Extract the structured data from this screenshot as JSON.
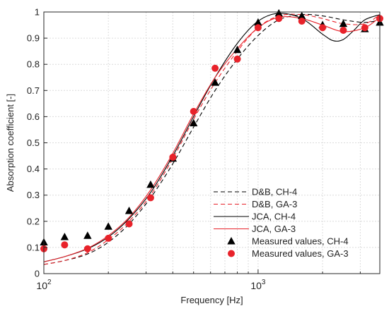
{
  "chart_data": {
    "type": "line",
    "xlabel": "Frequency [Hz]",
    "ylabel": "Absorption coefficient [-]",
    "xscale": "log",
    "xlim": [
      100,
      3700
    ],
    "ylim": [
      0,
      1
    ],
    "grid": true,
    "legend_position": "bottom-right",
    "y_ticks": [
      "0",
      "0.1",
      "0.2",
      "0.3",
      "0.4",
      "0.5",
      "0.6",
      "0.7",
      "0.8",
      "0.9",
      "1"
    ],
    "x_ticks": [
      {
        "base": "10",
        "exp": "2",
        "value": 100
      },
      {
        "base": "10",
        "exp": "3",
        "value": 1000
      }
    ],
    "series": [
      {
        "name": "D&B, CH-4",
        "style": "line",
        "color": "#000000",
        "dash": "dashed",
        "x": [
          100,
          125,
          160,
          200,
          250,
          315,
          400,
          500,
          630,
          800,
          1000,
          1250,
          1600,
          2000,
          2500,
          3150,
          3700
        ],
        "y": [
          0.035,
          0.05,
          0.075,
          0.12,
          0.19,
          0.29,
          0.42,
          0.56,
          0.7,
          0.82,
          0.91,
          0.97,
          0.99,
          0.985,
          0.97,
          0.96,
          0.97
        ]
      },
      {
        "name": "D&B, GA-3",
        "style": "line",
        "color": "#e8222a",
        "dash": "dashed",
        "x": [
          100,
          125,
          160,
          200,
          250,
          315,
          400,
          500,
          630,
          800,
          1000,
          1250,
          1600,
          2000,
          2500,
          3150,
          3700
        ],
        "y": [
          0.035,
          0.05,
          0.08,
          0.13,
          0.2,
          0.3,
          0.44,
          0.59,
          0.73,
          0.85,
          0.94,
          0.985,
          0.99,
          0.975,
          0.955,
          0.955,
          0.99
        ]
      },
      {
        "name": "JCA, CH-4",
        "style": "line",
        "color": "#000000",
        "dash": "solid",
        "x": [
          100,
          125,
          160,
          200,
          250,
          315,
          400,
          500,
          630,
          800,
          1000,
          1250,
          1600,
          2000,
          2250,
          2500,
          2800,
          3150,
          3700
        ],
        "y": [
          0.045,
          0.065,
          0.095,
          0.14,
          0.21,
          0.31,
          0.45,
          0.6,
          0.75,
          0.88,
          0.965,
          0.995,
          0.975,
          0.915,
          0.89,
          0.895,
          0.93,
          0.97,
          0.99
        ]
      },
      {
        "name": "JCA, GA-3",
        "style": "line",
        "color": "#e8222a",
        "dash": "solid",
        "x": [
          100,
          125,
          160,
          200,
          250,
          315,
          400,
          500,
          630,
          800,
          1000,
          1250,
          1600,
          2000,
          2500,
          3150,
          3700
        ],
        "y": [
          0.045,
          0.065,
          0.097,
          0.145,
          0.215,
          0.32,
          0.46,
          0.61,
          0.75,
          0.86,
          0.94,
          0.98,
          0.975,
          0.95,
          0.925,
          0.94,
          0.98
        ]
      },
      {
        "name": "Measured values, CH-4",
        "style": "marker",
        "marker": "triangle",
        "color": "#000000",
        "x": [
          100,
          125,
          160,
          200,
          250,
          315,
          400,
          500,
          630,
          800,
          1000,
          1250,
          1600,
          2000,
          2500,
          3150,
          3700
        ],
        "y": [
          0.12,
          0.14,
          0.145,
          0.18,
          0.24,
          0.34,
          0.44,
          0.575,
          0.73,
          0.855,
          0.96,
          0.995,
          0.985,
          0.95,
          0.955,
          0.935,
          0.96
        ]
      },
      {
        "name": "Measured values, GA-3",
        "style": "marker",
        "marker": "circle",
        "color": "#e8222a",
        "x": [
          100,
          125,
          160,
          200,
          250,
          315,
          400,
          500,
          630,
          800,
          1000,
          1250,
          1600,
          2000,
          2500,
          3150,
          3700
        ],
        "y": [
          0.095,
          0.11,
          0.095,
          0.135,
          0.19,
          0.29,
          0.445,
          0.62,
          0.785,
          0.82,
          0.94,
          0.975,
          0.965,
          0.94,
          0.93,
          0.94,
          0.975
        ]
      }
    ]
  }
}
